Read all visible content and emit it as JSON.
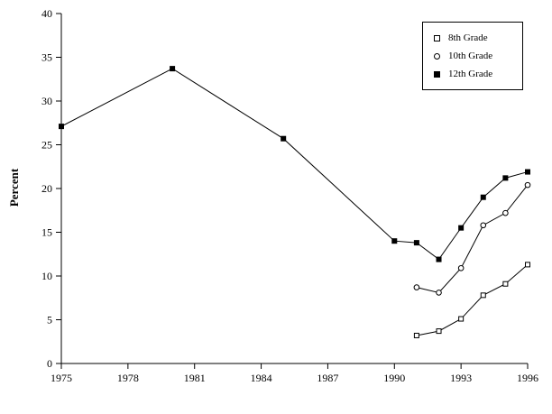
{
  "figure": {
    "background": "#ffffff",
    "line_color": "#000000"
  },
  "chart_data": {
    "type": "line",
    "title": "",
    "xlabel": "",
    "ylabel": "Percent",
    "xlim": [
      1975,
      1996
    ],
    "ylim": [
      0,
      40
    ],
    "x_ticks": [
      1975,
      1978,
      1981,
      1984,
      1987,
      1990,
      1993,
      1996
    ],
    "y_ticks": [
      0,
      5,
      10,
      15,
      20,
      25,
      30,
      35,
      40
    ],
    "grid": false,
    "legend_position": "top-right",
    "series": [
      {
        "name": "8th Grade",
        "marker": "open-square",
        "x": [
          1991,
          1992,
          1993,
          1994,
          1995,
          1996
        ],
        "values": [
          3.2,
          3.7,
          5.1,
          7.8,
          9.1,
          11.3
        ]
      },
      {
        "name": "10th Grade",
        "marker": "open-circle",
        "x": [
          1991,
          1992,
          1993,
          1994,
          1995,
          1996
        ],
        "values": [
          8.7,
          8.1,
          10.9,
          15.8,
          17.2,
          20.4
        ]
      },
      {
        "name": "12th Grade",
        "marker": "filled-square",
        "x": [
          1975,
          1980,
          1985,
          1990,
          1991,
          1992,
          1993,
          1994,
          1995,
          1996
        ],
        "values": [
          27.1,
          33.7,
          25.7,
          14.0,
          13.8,
          11.9,
          15.5,
          19.0,
          21.2,
          21.9
        ]
      }
    ]
  }
}
